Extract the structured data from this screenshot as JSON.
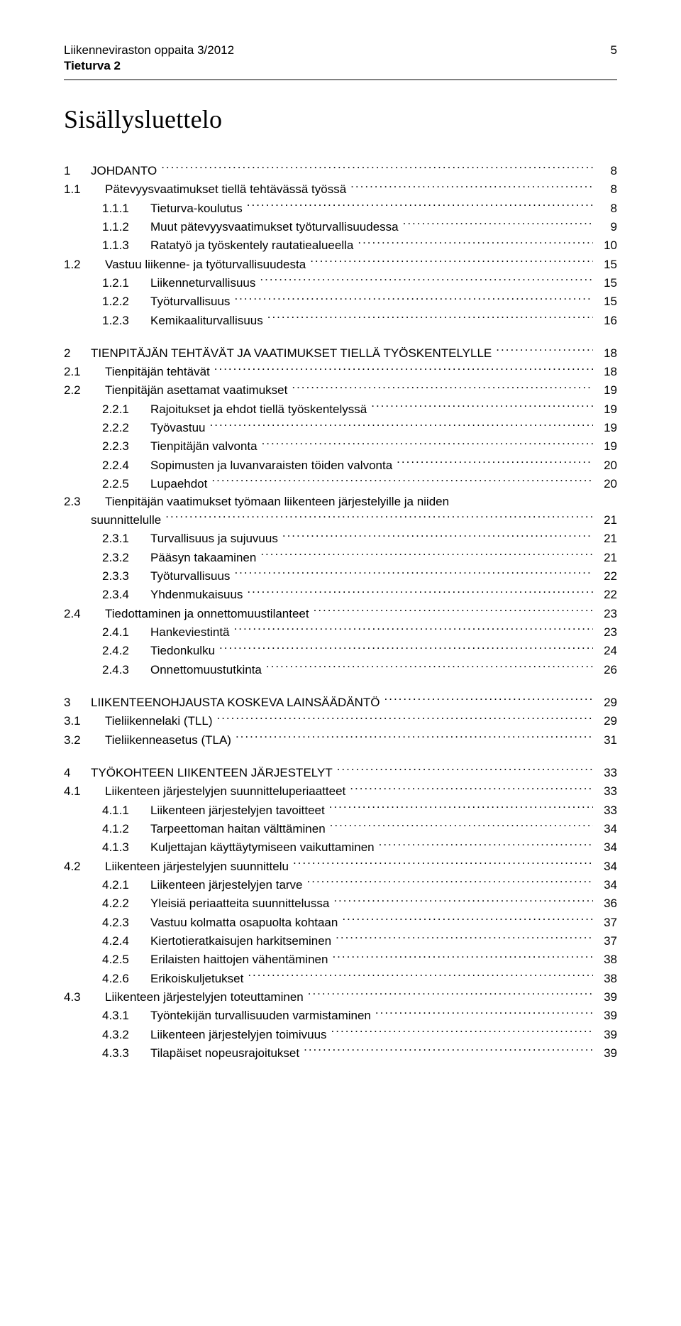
{
  "header": {
    "line1_left": "Liikenneviraston oppaita 3/2012",
    "line1_right": "5",
    "line2": "Tieturva 2"
  },
  "title": "Sisällysluettelo",
  "toc": [
    {
      "rows": [
        {
          "level": 1,
          "num": "1",
          "label": "JOHDANTO",
          "page": "8",
          "caps": true
        },
        {
          "level": 1,
          "num": "1.1",
          "label": "Pätevyysvaatimukset tiellä tehtävässä  työssä",
          "page": "8"
        },
        {
          "level": 2,
          "num": "1.1.1",
          "label": "Tieturva-koulutus",
          "page": "8"
        },
        {
          "level": 2,
          "num": "1.1.2",
          "label": "Muut pätevyysvaatimukset työturvallisuudessa",
          "page": "9"
        },
        {
          "level": 2,
          "num": "1.1.3",
          "label": "Ratatyö ja työskentely rautatiealueella",
          "page": "10"
        },
        {
          "level": 1,
          "num": "1.2",
          "label": "Vastuu liikenne- ja työturvallisuudesta",
          "page": "15"
        },
        {
          "level": 2,
          "num": "1.2.1",
          "label": "Liikenneturvallisuus",
          "page": "15"
        },
        {
          "level": 2,
          "num": "1.2.2",
          "label": "Työturvallisuus",
          "page": "15"
        },
        {
          "level": 2,
          "num": "1.2.3",
          "label": "Kemikaaliturvallisuus",
          "page": "16"
        }
      ]
    },
    {
      "rows": [
        {
          "level": 1,
          "num": "2",
          "label": "TIENPITÄJÄN TEHTÄVÄT JA VAATIMUKSET TIELLÄ TYÖSKENTELYLLE",
          "page": "18",
          "caps": true
        },
        {
          "level": 1,
          "num": "2.1",
          "label": "Tienpitäjän tehtävät",
          "page": "18"
        },
        {
          "level": 1,
          "num": "2.2",
          "label": "Tienpitäjän asettamat vaatimukset",
          "page": "19"
        },
        {
          "level": 2,
          "num": "2.2.1",
          "label": "Rajoitukset ja ehdot tiellä työskentelyssä",
          "page": "19"
        },
        {
          "level": 2,
          "num": "2.2.2",
          "label": "Työvastuu",
          "page": "19"
        },
        {
          "level": 2,
          "num": "2.2.3",
          "label": "Tienpitäjän valvonta",
          "page": "19"
        },
        {
          "level": 2,
          "num": "2.2.4",
          "label": "Sopimusten ja luvanvaraisten töiden valvonta",
          "page": "20"
        },
        {
          "level": 2,
          "num": "2.2.5",
          "label": "Lupaehdot",
          "page": "20"
        },
        {
          "level": 1,
          "num": "2.3",
          "label": "Tienpitäjän vaatimukset työmaan liikenteen järjestelyille ja niiden",
          "nowrap_page": true
        },
        {
          "level": 1,
          "num": "",
          "label": "suunnittelulle",
          "page": "21"
        },
        {
          "level": 2,
          "num": "2.3.1",
          "label": "Turvallisuus ja sujuvuus",
          "page": "21"
        },
        {
          "level": 2,
          "num": "2.3.2",
          "label": "Pääsyn takaaminen",
          "page": "21"
        },
        {
          "level": 2,
          "num": "2.3.3",
          "label": "Työturvallisuus",
          "page": "22"
        },
        {
          "level": 2,
          "num": "2.3.4",
          "label": "Yhdenmukaisuus",
          "page": "22"
        },
        {
          "level": 1,
          "num": "2.4",
          "label": "Tiedottaminen ja onnettomuustilanteet",
          "page": "23"
        },
        {
          "level": 2,
          "num": "2.4.1",
          "label": "Hankeviestintä",
          "page": "23"
        },
        {
          "level": 2,
          "num": "2.4.2",
          "label": "Tiedonkulku",
          "page": "24"
        },
        {
          "level": 2,
          "num": "2.4.3",
          "label": "Onnettomuustutkinta",
          "page": "26"
        }
      ]
    },
    {
      "rows": [
        {
          "level": 1,
          "num": "3",
          "label": "LIIKENTEENOHJAUSTA KOSKEVA LAINSÄÄDÄNTÖ",
          "page": "29",
          "caps": true
        },
        {
          "level": 1,
          "num": "3.1",
          "label": "Tieliikennelaki (TLL)",
          "page": "29"
        },
        {
          "level": 1,
          "num": "3.2",
          "label": "Tieliikenneasetus (TLA)",
          "page": "31"
        }
      ]
    },
    {
      "rows": [
        {
          "level": 1,
          "num": "4",
          "label": "TYÖKOHTEEN LIIKENTEEN JÄRJESTELYT",
          "page": "33",
          "caps": true
        },
        {
          "level": 1,
          "num": "4.1",
          "label": "Liikenteen järjestelyjen suunnitteluperiaatteet",
          "page": "33"
        },
        {
          "level": 2,
          "num": "4.1.1",
          "label": "Liikenteen järjestelyjen tavoitteet",
          "page": "33"
        },
        {
          "level": 2,
          "num": "4.1.2",
          "label": "Tarpeettoman haitan välttäminen",
          "page": "34"
        },
        {
          "level": 2,
          "num": "4.1.3",
          "label": "Kuljettajan käyttäytymiseen vaikuttaminen",
          "page": "34"
        },
        {
          "level": 1,
          "num": "4.2",
          "label": "Liikenteen järjestelyjen suunnittelu",
          "page": "34"
        },
        {
          "level": 2,
          "num": "4.2.1",
          "label": "Liikenteen järjestelyjen tarve",
          "page": "34"
        },
        {
          "level": 2,
          "num": "4.2.2",
          "label": "Yleisiä periaatteita suunnittelussa",
          "page": "36"
        },
        {
          "level": 2,
          "num": "4.2.3",
          "label": "Vastuu kolmatta osapuolta kohtaan",
          "page": "37"
        },
        {
          "level": 2,
          "num": "4.2.4",
          "label": "Kiertotieratkaisujen harkitseminen",
          "page": "37"
        },
        {
          "level": 2,
          "num": "4.2.5",
          "label": "Erilaisten haittojen vähentäminen",
          "page": "38"
        },
        {
          "level": 2,
          "num": "4.2.6",
          "label": "Erikoiskuljetukset",
          "page": "38"
        },
        {
          "level": 1,
          "num": "4.3",
          "label": "Liikenteen järjestelyjen toteuttaminen",
          "page": "39"
        },
        {
          "level": 2,
          "num": "4.3.1",
          "label": "Työntekijän turvallisuuden varmistaminen",
          "page": "39"
        },
        {
          "level": 2,
          "num": "4.3.2",
          "label": "Liikenteen järjestelyjen toimivuus",
          "page": "39"
        },
        {
          "level": 2,
          "num": "4.3.3",
          "label": "Tilapäiset nopeusrajoitukset",
          "page": "39"
        }
      ]
    }
  ]
}
